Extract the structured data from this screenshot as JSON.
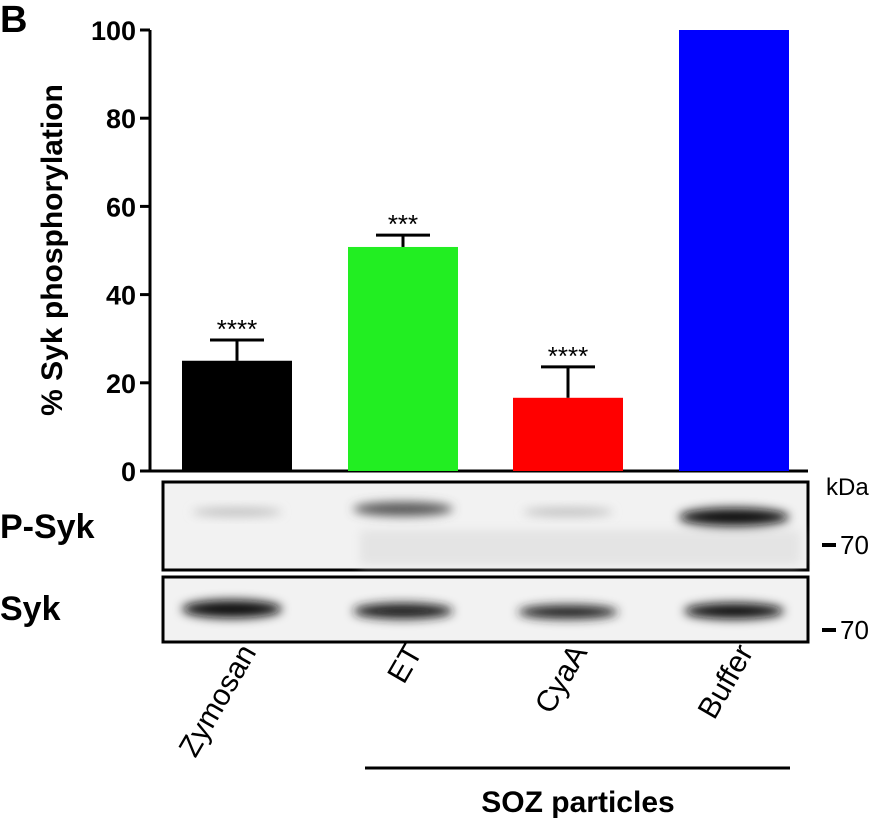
{
  "chart_data": {
    "type": "bar",
    "panel_label": "B",
    "ylabel": "% Syk phosphorylation",
    "categories": [
      "Zymosan",
      "ET",
      "CyaA",
      "Buffer"
    ],
    "values": [
      25,
      50.8,
      16.6,
      100
    ],
    "errors": [
      4.7,
      2.7,
      7,
      null
    ],
    "significance": [
      "****",
      "***",
      "****",
      null
    ],
    "colors": [
      "#000000",
      "#22ee22",
      "#ff0000",
      "#0000ff"
    ],
    "ylim": [
      0,
      100
    ],
    "yticks": [
      0,
      20,
      40,
      60,
      80,
      100
    ],
    "blot_unit": "kDa",
    "blots": [
      {
        "name": "P-Syk",
        "marker": "70"
      },
      {
        "name": "Syk",
        "marker": "70"
      }
    ],
    "group_label": "SOZ particles"
  }
}
